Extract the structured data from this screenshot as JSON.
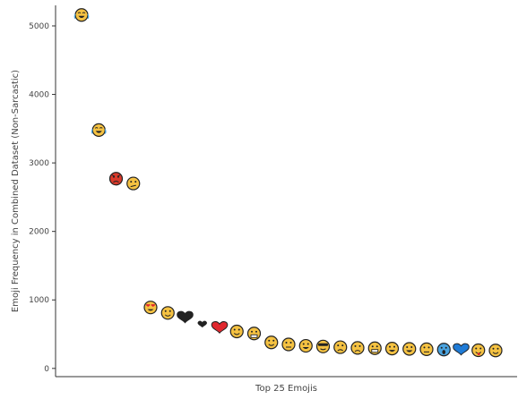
{
  "chart_data": {
    "type": "scatter",
    "xlabel": "Top 25 Emojis",
    "ylabel": "Emoji Frequency in Combined Dataset (Non-Sarcastic)",
    "ylim": [
      -120,
      5300
    ],
    "yticks": [
      0,
      1000,
      2000,
      3000,
      4000,
      5000
    ],
    "grid": false,
    "points": [
      {
        "rank": 1,
        "value": 5160,
        "icon": "face-with-tears-of-joy",
        "color": "#f5c242"
      },
      {
        "rank": 2,
        "value": 3480,
        "icon": "loudly-crying-face",
        "color": "#f5c242"
      },
      {
        "rank": 3,
        "value": 2770,
        "icon": "angry-face",
        "color": "#d93a2b"
      },
      {
        "rank": 4,
        "value": 2700,
        "icon": "confused-face",
        "color": "#f5c242"
      },
      {
        "rank": 5,
        "value": 890,
        "icon": "heart-eyes-face",
        "color": "#f5c242"
      },
      {
        "rank": 6,
        "value": 810,
        "icon": "smiling-face",
        "color": "#f5c242"
      },
      {
        "rank": 7,
        "value": 740,
        "icon": "black-heart",
        "color": "#222222"
      },
      {
        "rank": 8,
        "value": 640,
        "icon": "small-black-heart",
        "color": "#222222"
      },
      {
        "rank": 9,
        "value": 590,
        "icon": "red-heart",
        "color": "#e0282e"
      },
      {
        "rank": 10,
        "value": 540,
        "icon": "winking-face",
        "color": "#f5c242"
      },
      {
        "rank": 11,
        "value": 510,
        "icon": "grimacing-face",
        "color": "#f5c242"
      },
      {
        "rank": 12,
        "value": 380,
        "icon": "slightly-smiling-face",
        "color": "#f5c242"
      },
      {
        "rank": 13,
        "value": 350,
        "icon": "unamused-face",
        "color": "#f5c242"
      },
      {
        "rank": 14,
        "value": 330,
        "icon": "grinning-face",
        "color": "#f5c242"
      },
      {
        "rank": 15,
        "value": 320,
        "icon": "sunglasses-face",
        "color": "#f5c242"
      },
      {
        "rank": 16,
        "value": 310,
        "icon": "frowning-face",
        "color": "#f5c242"
      },
      {
        "rank": 17,
        "value": 300,
        "icon": "pensive-face",
        "color": "#f5c242"
      },
      {
        "rank": 18,
        "value": 295,
        "icon": "weary-face",
        "color": "#f5c242"
      },
      {
        "rank": 19,
        "value": 290,
        "icon": "beaming-face",
        "color": "#f5c242"
      },
      {
        "rank": 20,
        "value": 285,
        "icon": "grinning-sweat-face",
        "color": "#f5c242"
      },
      {
        "rank": 21,
        "value": 280,
        "icon": "neutral-face",
        "color": "#f5c242"
      },
      {
        "rank": 22,
        "value": 275,
        "icon": "screaming-face",
        "color": "#4aa3df"
      },
      {
        "rank": 23,
        "value": 270,
        "icon": "blue-heart",
        "color": "#1f7bd6"
      },
      {
        "rank": 24,
        "value": 265,
        "icon": "tongue-face",
        "color": "#f5c242"
      },
      {
        "rank": 25,
        "value": 262,
        "icon": "smirking-face",
        "color": "#f5c242"
      }
    ]
  }
}
